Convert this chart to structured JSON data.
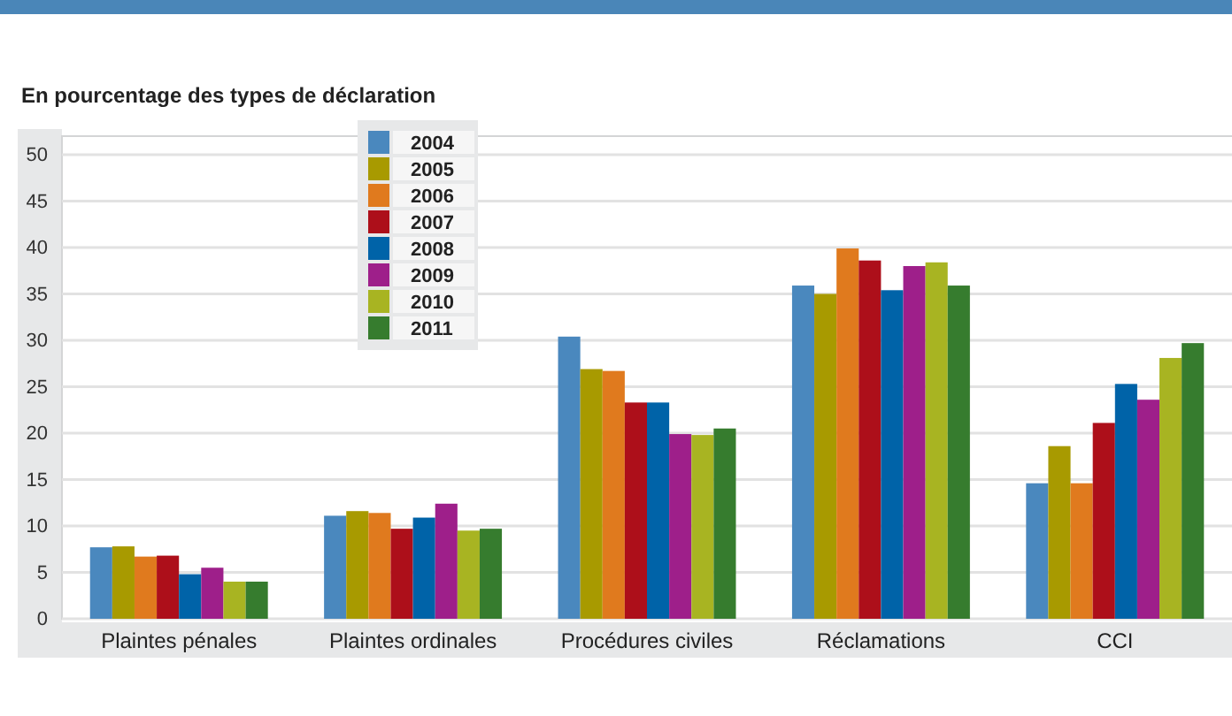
{
  "chart_data": {
    "type": "bar",
    "title": "En pourcentage des types de déclaration",
    "categories": [
      "Plaintes pénales",
      "Plaintes ordinales",
      "Procédures civiles",
      "Réclamations",
      "CCI"
    ],
    "series": [
      {
        "name": "2004",
        "color": "#4a88be",
        "values": [
          7.7,
          11.1,
          30.4,
          35.9,
          14.6
        ]
      },
      {
        "name": "2005",
        "color": "#a89a00",
        "values": [
          7.8,
          11.6,
          26.9,
          35.0,
          18.6
        ]
      },
      {
        "name": "2006",
        "color": "#e07a1e",
        "values": [
          6.7,
          11.4,
          26.7,
          39.9,
          14.6
        ]
      },
      {
        "name": "2007",
        "color": "#ad0f1a",
        "values": [
          6.8,
          9.7,
          23.3,
          38.6,
          21.1
        ]
      },
      {
        "name": "2008",
        "color": "#0063a8",
        "values": [
          4.8,
          10.9,
          23.3,
          35.4,
          25.3
        ]
      },
      {
        "name": "2009",
        "color": "#9e1f8a",
        "values": [
          5.5,
          12.4,
          19.9,
          38.0,
          23.6
        ]
      },
      {
        "name": "2010",
        "color": "#a8b422",
        "values": [
          4.0,
          9.5,
          19.8,
          38.4,
          28.1
        ]
      },
      {
        "name": "2011",
        "color": "#367c2e",
        "values": [
          4.0,
          9.7,
          20.5,
          35.9,
          29.7
        ]
      }
    ],
    "ylim": [
      0,
      52
    ],
    "yticks": [
      0,
      5,
      10,
      15,
      20,
      25,
      30,
      35,
      40,
      45,
      50
    ],
    "grid": "y",
    "legend": "top left"
  }
}
